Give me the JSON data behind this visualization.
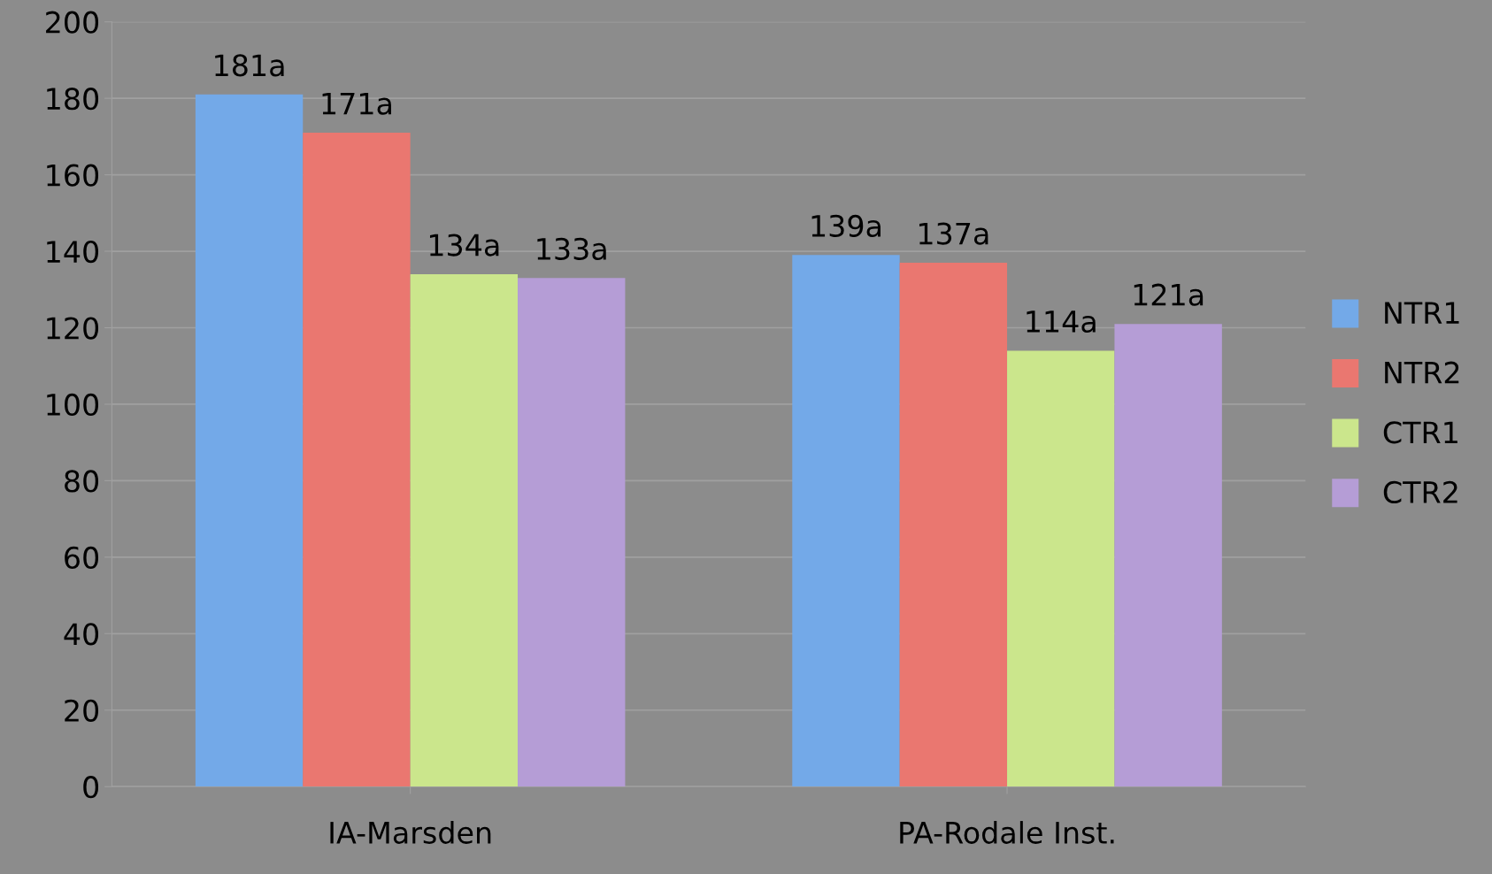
{
  "chart_data": {
    "type": "bar",
    "categories": [
      "IA-Marsden",
      "PA-Rodale Inst."
    ],
    "series": [
      {
        "name": "NTR1",
        "color": "#73a9e8",
        "values": [
          181,
          139
        ],
        "value_labels": [
          "181a",
          "139a"
        ]
      },
      {
        "name": "NTR2",
        "color": "#ea7770",
        "values": [
          171,
          137
        ],
        "value_labels": [
          "171a",
          "137a"
        ]
      },
      {
        "name": "CTR1",
        "color": "#cbe68c",
        "values": [
          134,
          114
        ],
        "value_labels": [
          "134a",
          "114a"
        ]
      },
      {
        "name": "CTR2",
        "color": "#b59dd6",
        "values": [
          133,
          121
        ],
        "value_labels": [
          "133a",
          "121a"
        ]
      }
    ],
    "ylim": [
      0,
      200
    ],
    "yticks": [
      0,
      20,
      40,
      60,
      80,
      100,
      120,
      140,
      160,
      180,
      200
    ],
    "grid": "y",
    "legend": "right"
  }
}
